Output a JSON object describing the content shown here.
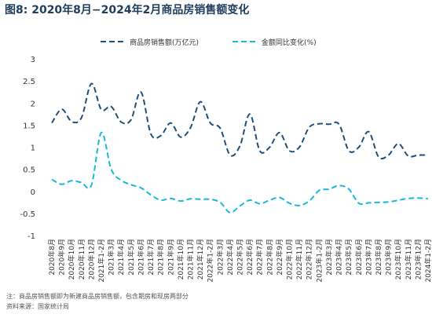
{
  "title": "图8: 2020年8月−2024年2月商品房销售额变化",
  "footnotes": [
    "注：商品房销售额即为新建商品房销售额，包含期房和现房两部分",
    "资料来源：国家统计局"
  ],
  "chart_data": {
    "type": "line",
    "ylim": [
      -1,
      3
    ],
    "yticks": [
      -1,
      -0.5,
      0,
      0.5,
      1,
      1.5,
      2,
      2.5,
      3
    ],
    "legend_position": "top-center",
    "categories": [
      "2020年8月",
      "2020年9月",
      "2020年10月",
      "2020年11月",
      "2020年12月",
      "2021年1-2月",
      "2021年3月",
      "2021年4月",
      "2021年5月",
      "2021年6月",
      "2021年7月",
      "2021年8月",
      "2021年9月",
      "2021年10月",
      "2021年11月",
      "2021年12月",
      "2022年1-2月",
      "2022年3月",
      "2022年4月",
      "2022年5月",
      "2022年6月",
      "2022年7月",
      "2022年8月",
      "2022年9月",
      "2022年10月",
      "2022年11月",
      "2022年12月",
      "2023年1-2月",
      "2023年3月",
      "2023年4月",
      "2023年5月",
      "2023年6月",
      "2023年7月",
      "2023年8月",
      "2023年9月",
      "2023年10月",
      "2023年11月",
      "2023年12月",
      "2024年1-2月"
    ],
    "series": [
      {
        "name": "商品房销售额(万亿元)",
        "color": "#1f4e79",
        "style": "dashed",
        "values": [
          1.55,
          1.86,
          1.58,
          1.67,
          2.44,
          1.85,
          1.92,
          1.57,
          1.62,
          2.25,
          1.3,
          1.26,
          1.55,
          1.23,
          1.44,
          2.03,
          1.55,
          1.43,
          0.82,
          1.03,
          1.75,
          0.92,
          1.0,
          1.33,
          0.92,
          1.0,
          1.45,
          1.53,
          1.52,
          1.52,
          0.92,
          1.0,
          1.35,
          0.78,
          0.82,
          1.08,
          0.8,
          0.82,
          0.82
        ]
      },
      {
        "name": "金额同比变化(%)",
        "color": "#17b8d8",
        "style": "dashed",
        "values": [
          0.27,
          0.16,
          0.24,
          0.2,
          0.14,
          1.33,
          0.5,
          0.25,
          0.15,
          0.08,
          -0.08,
          -0.2,
          -0.16,
          -0.22,
          -0.17,
          -0.18,
          -0.18,
          -0.25,
          -0.48,
          -0.33,
          -0.2,
          -0.28,
          -0.2,
          -0.14,
          -0.27,
          -0.32,
          -0.22,
          0.02,
          0.05,
          0.13,
          0.05,
          -0.27,
          -0.26,
          -0.25,
          -0.24,
          -0.2,
          -0.16,
          -0.15,
          -0.17
        ]
      }
    ]
  }
}
